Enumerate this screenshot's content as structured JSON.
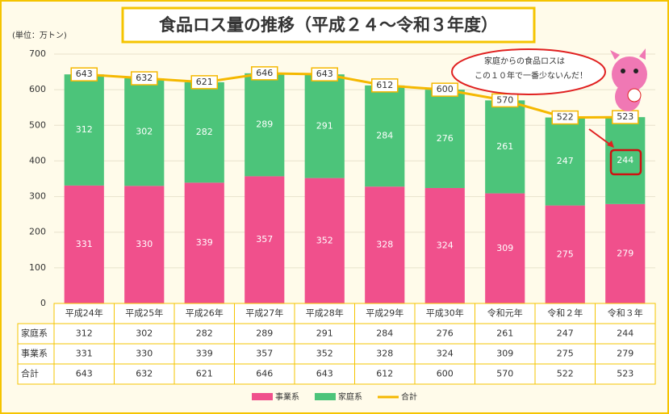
{
  "chart_data": {
    "type": "bar",
    "title": "食品ロス量の推移（平成２４～令和３年度）",
    "y_label": "(単位：万トン)",
    "categories": [
      "平成24年",
      "平成25年",
      "平成26年",
      "平成27年",
      "平成28年",
      "平成29年",
      "平成30年",
      "令和元年",
      "令和２年",
      "令和３年"
    ],
    "series": [
      {
        "name": "事業系",
        "type": "bar",
        "color": "#f0508c",
        "values": [
          331,
          330,
          339,
          357,
          352,
          328,
          324,
          309,
          275,
          279
        ]
      },
      {
        "name": "家庭系",
        "type": "bar",
        "color": "#4cc47a",
        "values": [
          312,
          302,
          282,
          289,
          291,
          284,
          276,
          261,
          247,
          244
        ]
      },
      {
        "name": "合計",
        "type": "line",
        "color": "#f5b800",
        "values": [
          643,
          632,
          621,
          646,
          643,
          612,
          600,
          570,
          522,
          523
        ]
      }
    ],
    "stacked": true,
    "ylim": [
      0,
      700
    ],
    "yticks": [
      0,
      100,
      200,
      300,
      400,
      500,
      600,
      700
    ],
    "grid": true,
    "annotation": [
      "家庭からの食品ロスは",
      "この１０年で一番少ないんだ！"
    ]
  }
}
